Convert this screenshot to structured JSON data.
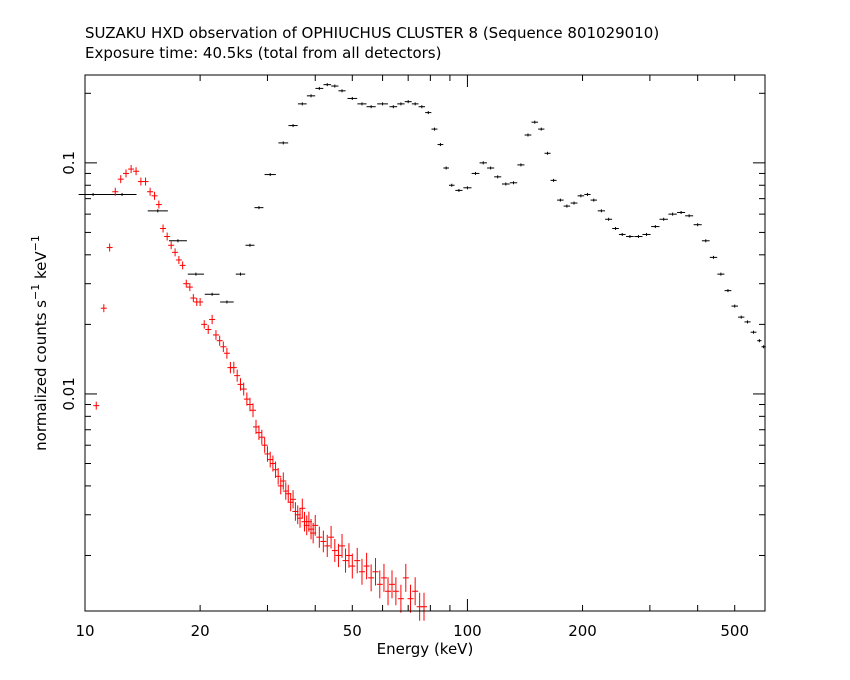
{
  "chart_data": {
    "type": "scatter",
    "title": "SUZAKU HXD observation of OPHIUCHUS CLUSTER 8 (Sequence 801029010)",
    "subtitle": "Exposure time: 40.5ks (total from all detectors)",
    "xlabel": "Energy (keV)",
    "ylabel": {
      "prefix": "normalized counts s",
      "mid": " keV",
      "exp": "−1"
    },
    "x_scale": "log",
    "y_scale": "log",
    "xlim": [
      10,
      600
    ],
    "ylim": [
      0.00115,
      0.24
    ],
    "x_ticks": [
      10,
      20,
      50,
      100,
      200,
      500
    ],
    "x_tick_labels": [
      "10",
      "20",
      "50",
      "100",
      "200",
      "500"
    ],
    "y_ticks": [
      0.01,
      0.1
    ],
    "y_tick_labels": [
      "0.01",
      "0.1"
    ],
    "grid": false,
    "series": [
      {
        "color": "#000000",
        "errorbar": "x",
        "points": [
          [
            10.5,
            0.073
          ],
          [
            12.5,
            0.073
          ],
          [
            15.5,
            0.062
          ],
          [
            17.5,
            0.046
          ],
          [
            19.5,
            0.033
          ],
          [
            21.5,
            0.027
          ],
          [
            23.5,
            0.025
          ],
          [
            25.5,
            0.033
          ],
          [
            27,
            0.044
          ],
          [
            28.5,
            0.064
          ],
          [
            30.5,
            0.089
          ],
          [
            33,
            0.122
          ],
          [
            35,
            0.145
          ],
          [
            37,
            0.18
          ],
          [
            39,
            0.195
          ],
          [
            41,
            0.21
          ],
          [
            43,
            0.218
          ],
          [
            45,
            0.215
          ],
          [
            47,
            0.205
          ],
          [
            50,
            0.19
          ],
          [
            53,
            0.18
          ],
          [
            56,
            0.175
          ],
          [
            60,
            0.18
          ],
          [
            64,
            0.175
          ],
          [
            67,
            0.18
          ],
          [
            70,
            0.184
          ],
          [
            73,
            0.18
          ],
          [
            76,
            0.175
          ],
          [
            79,
            0.165
          ],
          [
            82,
            0.14
          ],
          [
            85,
            0.12
          ],
          [
            88,
            0.095
          ],
          [
            91,
            0.08
          ],
          [
            95,
            0.076
          ],
          [
            100,
            0.078
          ],
          [
            105,
            0.09
          ],
          [
            110,
            0.1
          ],
          [
            115,
            0.095
          ],
          [
            120,
            0.087
          ],
          [
            126,
            0.081
          ],
          [
            132,
            0.082
          ],
          [
            138,
            0.098
          ],
          [
            144,
            0.132
          ],
          [
            150,
            0.15
          ],
          [
            156,
            0.14
          ],
          [
            162,
            0.11
          ],
          [
            168,
            0.084
          ],
          [
            175,
            0.069
          ],
          [
            182,
            0.065
          ],
          [
            190,
            0.067
          ],
          [
            198,
            0.072
          ],
          [
            206,
            0.073
          ],
          [
            214,
            0.069
          ],
          [
            224,
            0.062
          ],
          [
            234,
            0.057
          ],
          [
            244,
            0.052
          ],
          [
            254,
            0.049
          ],
          [
            266,
            0.048
          ],
          [
            280,
            0.048
          ],
          [
            294,
            0.049
          ],
          [
            310,
            0.053
          ],
          [
            326,
            0.057
          ],
          [
            344,
            0.06
          ],
          [
            362,
            0.061
          ],
          [
            380,
            0.059
          ],
          [
            400,
            0.054
          ],
          [
            420,
            0.046
          ],
          [
            440,
            0.039
          ],
          [
            460,
            0.033
          ],
          [
            480,
            0.028
          ],
          [
            500,
            0.024
          ],
          [
            520,
            0.0215
          ],
          [
            540,
            0.0205
          ],
          [
            560,
            0.0185
          ],
          [
            580,
            0.017
          ],
          [
            595,
            0.016
          ]
        ]
      },
      {
        "color": "#ff0000",
        "errorbar": "y",
        "points": [
          [
            10.7,
            0.0089
          ],
          [
            11.2,
            0.0235
          ],
          [
            11.6,
            0.043
          ],
          [
            12.0,
            0.075
          ],
          [
            12.4,
            0.085
          ],
          [
            12.8,
            0.09
          ],
          [
            13.2,
            0.094
          ],
          [
            13.6,
            0.092
          ],
          [
            14.0,
            0.083
          ],
          [
            14.4,
            0.083
          ],
          [
            14.8,
            0.075
          ],
          [
            15.2,
            0.072
          ],
          [
            15.6,
            0.066
          ],
          [
            16.0,
            0.052
          ],
          [
            16.4,
            0.048
          ],
          [
            16.8,
            0.044
          ],
          [
            17.2,
            0.041
          ],
          [
            17.6,
            0.038
          ],
          [
            18.0,
            0.036
          ],
          [
            18.4,
            0.03
          ],
          [
            18.8,
            0.029
          ],
          [
            19.2,
            0.026
          ],
          [
            19.6,
            0.025
          ],
          [
            20.0,
            0.025
          ],
          [
            20.5,
            0.02
          ],
          [
            21.0,
            0.019
          ],
          [
            21.5,
            0.021
          ],
          [
            22.0,
            0.018
          ],
          [
            22.5,
            0.017
          ],
          [
            23.0,
            0.016
          ],
          [
            23.5,
            0.015
          ],
          [
            24.0,
            0.013
          ],
          [
            24.5,
            0.013
          ],
          [
            25.0,
            0.012
          ],
          [
            25.5,
            0.011
          ],
          [
            26.0,
            0.0105
          ],
          [
            26.5,
            0.0095
          ],
          [
            27.0,
            0.009
          ],
          [
            27.5,
            0.0085
          ],
          [
            28.0,
            0.0072
          ],
          [
            28.5,
            0.0068
          ],
          [
            29.0,
            0.0065
          ],
          [
            29.5,
            0.006
          ],
          [
            30.0,
            0.0055
          ],
          [
            30.5,
            0.0052
          ],
          [
            31.0,
            0.005
          ],
          [
            31.5,
            0.0047
          ],
          [
            32.0,
            0.0044
          ],
          [
            32.5,
            0.004
          ],
          [
            33.0,
            0.0042
          ],
          [
            33.5,
            0.0038
          ],
          [
            34.0,
            0.0037
          ],
          [
            34.5,
            0.0034
          ],
          [
            35.0,
            0.0035
          ],
          [
            35.5,
            0.0031
          ],
          [
            36.0,
            0.003
          ],
          [
            36.5,
            0.0029
          ],
          [
            37.0,
            0.0032
          ],
          [
            37.5,
            0.0028
          ],
          [
            38.0,
            0.0027
          ],
          [
            38.5,
            0.0028
          ],
          [
            39.0,
            0.0026
          ],
          [
            39.5,
            0.0025
          ],
          [
            40.0,
            0.0027
          ],
          [
            41.0,
            0.0024
          ],
          [
            42.0,
            0.0023
          ],
          [
            43.0,
            0.0022
          ],
          [
            44.0,
            0.0024
          ],
          [
            45.0,
            0.0021
          ],
          [
            46.0,
            0.002
          ],
          [
            47.0,
            0.0022
          ],
          [
            48.0,
            0.0019
          ],
          [
            49.0,
            0.002
          ],
          [
            50.0,
            0.0018
          ],
          [
            51.5,
            0.0019
          ],
          [
            53.0,
            0.0017
          ],
          [
            54.5,
            0.0018
          ],
          [
            56.0,
            0.0016
          ],
          [
            57.5,
            0.0017
          ],
          [
            59.0,
            0.0015
          ],
          [
            60.5,
            0.0016
          ],
          [
            62.0,
            0.0014
          ],
          [
            63.5,
            0.0015
          ],
          [
            65.0,
            0.0014
          ],
          [
            67.0,
            0.0013
          ],
          [
            69.0,
            0.0016
          ],
          [
            71.0,
            0.0013
          ],
          [
            73.0,
            0.0014
          ],
          [
            75.0,
            0.0012
          ],
          [
            77.0,
            0.0012
          ]
        ]
      }
    ]
  }
}
